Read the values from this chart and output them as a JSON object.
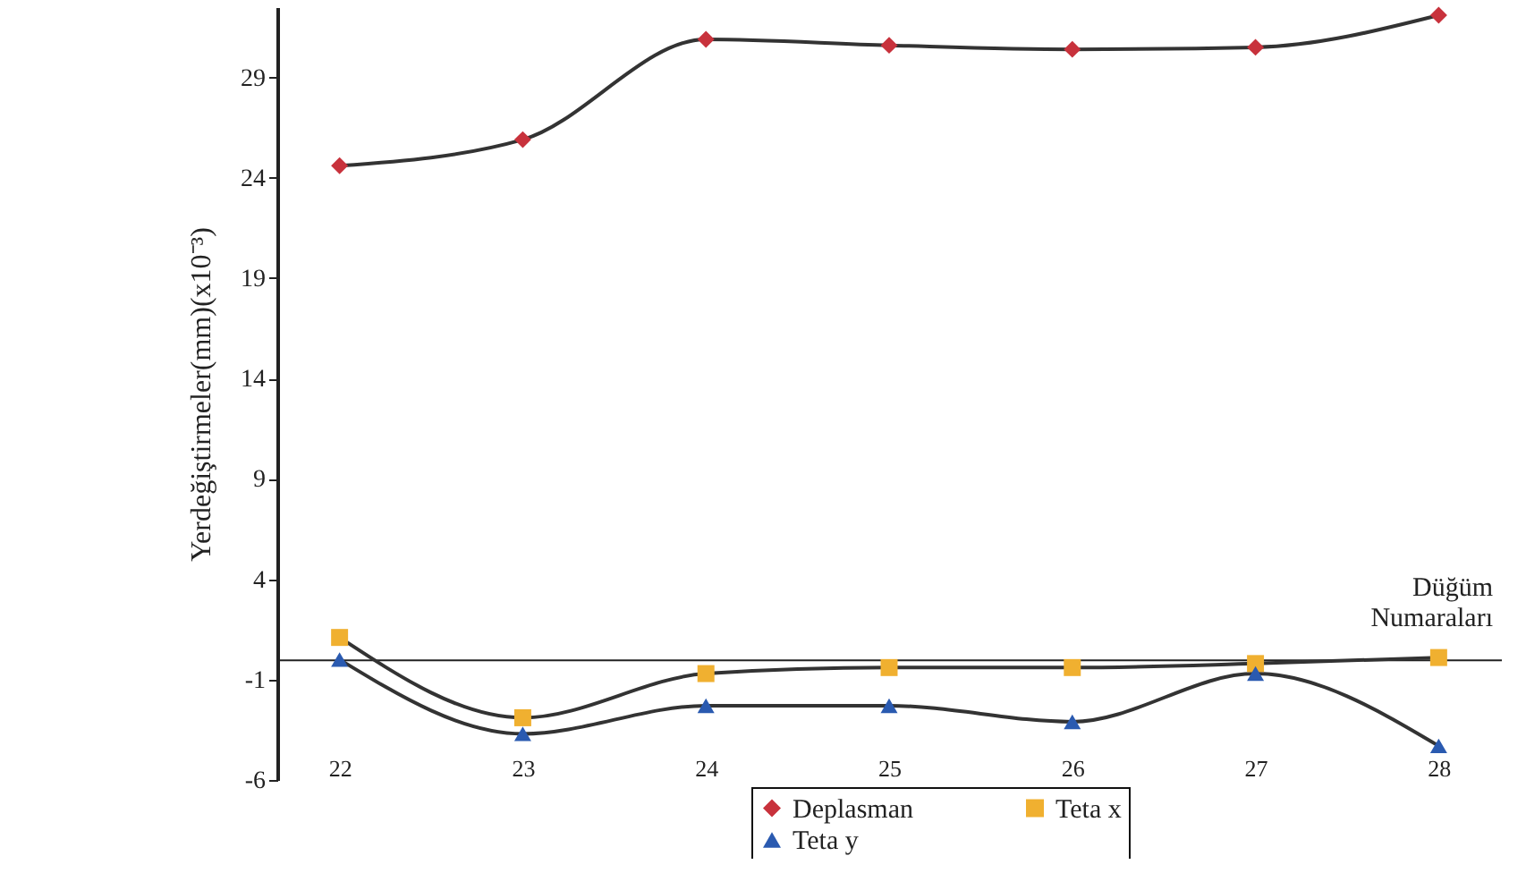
{
  "chart_data": {
    "type": "line",
    "ylabel": "Yerdeğiştirmeler(mm)(x10⁻³)",
    "xlabel": "Düğüm Numaraları",
    "categories": [
      "22",
      "23",
      "24",
      "25",
      "26",
      "27",
      "28"
    ],
    "series": [
      {
        "name": "Deplasman",
        "color": "#c8323c",
        "marker": "diamond",
        "values": [
          24.6,
          25.9,
          30.9,
          30.6,
          30.4,
          30.5,
          32.1
        ]
      },
      {
        "name": "Teta x",
        "color": "#f0b030",
        "marker": "square",
        "values": [
          1.1,
          -2.9,
          -0.7,
          -0.4,
          -0.4,
          -0.2,
          0.1
        ]
      },
      {
        "name": "Teta y",
        "color": "#2a5ab0",
        "marker": "triangle",
        "values": [
          0.0,
          -3.7,
          -2.3,
          -2.3,
          -3.1,
          -0.7,
          -4.3
        ]
      }
    ],
    "ylim": [
      -6,
      32.5
    ],
    "yticks": [
      -6,
      -1,
      4,
      9,
      14,
      19,
      24,
      29
    ],
    "grid": false,
    "legend": "bottom right"
  }
}
